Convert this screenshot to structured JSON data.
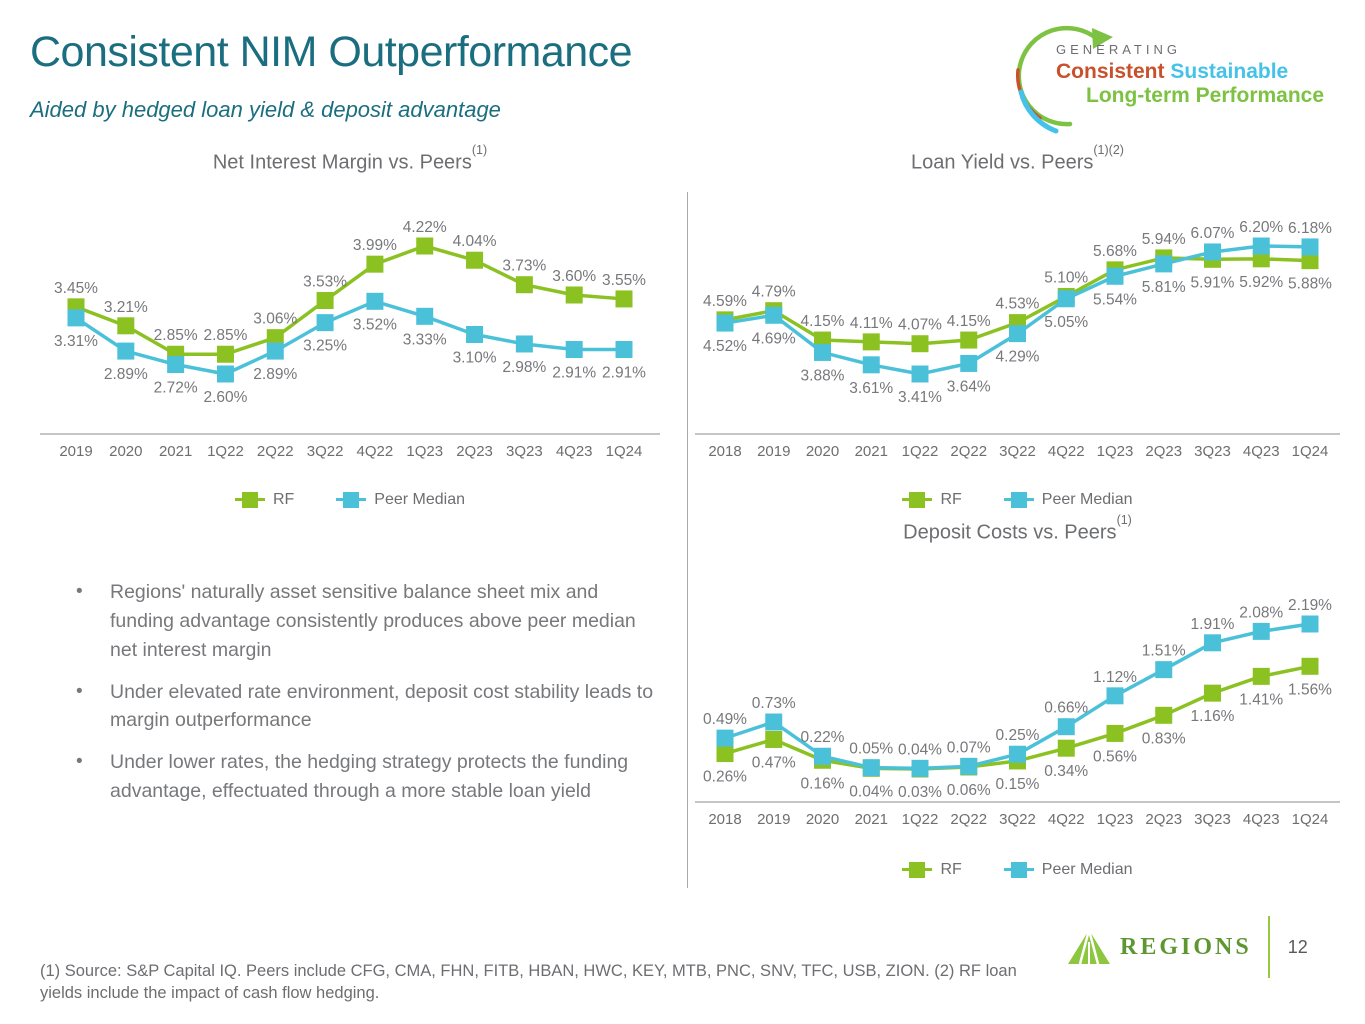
{
  "slide": {
    "title": "Consistent NIM Outperformance",
    "subtitle": "Aided by hedged loan yield & deposit advantage",
    "page_number": "12",
    "footnote": "(1) Source: S&P Capital IQ. Peers include CFG, CMA, FHN, FITB, HBAN, HWC, KEY, MTB, PNC, SNV, TFC, USB, ZION.  (2) RF loan yields include the impact of cash flow hedging."
  },
  "brand_logo": {
    "line1": "GENERATING",
    "word_consistent": "Consistent",
    "word_sustainable": "Sustainable",
    "line3": "Long-term Performance"
  },
  "regions_logo": {
    "wordmark": "REGIONS"
  },
  "legend": {
    "rf_label": "RF",
    "peer_label": "Peer Median"
  },
  "bullets": [
    "Regions' naturally asset sensitive balance sheet mix and funding advantage consistently produces above peer median net interest margin",
    "Under elevated rate environment, deposit cost stability leads to margin outperformance",
    "Under lower rates, the hedging strategy protects the funding advantage, effectuated through a more stable loan yield"
  ],
  "colors": {
    "rf_green": "#8CC122",
    "peer_blue": "#4BC1D9",
    "title_teal": "#1A6E80",
    "accent_orange": "#C8512B",
    "accent_light_blue": "#45C2EA",
    "accent_green": "#7DC242",
    "regions_green": "#5E9732",
    "axis_gray": "#BDBDBD",
    "label_gray": "#77787B"
  },
  "chart_data": [
    {
      "type": "line",
      "title": "Net Interest Margin vs. Peers",
      "title_sup": "(1)",
      "categories": [
        "2019",
        "2020",
        "2021",
        "1Q22",
        "2Q22",
        "3Q22",
        "4Q22",
        "1Q23",
        "2Q23",
        "3Q23",
        "4Q23",
        "1Q24"
      ],
      "series": [
        {
          "name": "RF",
          "color_key": "rf_green",
          "values": [
            3.45,
            3.21,
            2.85,
            2.85,
            3.06,
            3.53,
            3.99,
            4.22,
            4.04,
            3.73,
            3.6,
            3.55
          ]
        },
        {
          "name": "Peer Median",
          "color_key": "peer_blue",
          "values": [
            3.31,
            2.89,
            2.72,
            2.6,
            2.89,
            3.25,
            3.52,
            3.33,
            3.1,
            2.98,
            2.91,
            2.91
          ]
        }
      ],
      "unit": "%",
      "ylim": [
        2.5,
        4.4
      ],
      "grid": false,
      "legend_position": "bottom"
    },
    {
      "type": "line",
      "title": "Loan Yield vs. Peers",
      "title_sup": "(1)(2)",
      "categories": [
        "2018",
        "2019",
        "2020",
        "2021",
        "1Q22",
        "2Q22",
        "3Q22",
        "4Q22",
        "1Q23",
        "2Q23",
        "3Q23",
        "4Q23",
        "1Q24"
      ],
      "series": [
        {
          "name": "RF",
          "color_key": "rf_green",
          "values": [
            4.59,
            4.79,
            4.15,
            4.11,
            4.07,
            4.15,
            4.53,
            5.1,
            5.68,
            5.94,
            5.91,
            5.92,
            5.88
          ]
        },
        {
          "name": "Peer Median",
          "color_key": "peer_blue",
          "values": [
            4.52,
            4.69,
            3.88,
            3.61,
            3.41,
            3.64,
            4.29,
            5.05,
            5.54,
            5.81,
            6.07,
            6.2,
            6.18
          ]
        }
      ],
      "unit": "%",
      "ylim": [
        3.3,
        6.4
      ],
      "grid": false,
      "legend_position": "bottom"
    },
    {
      "type": "line",
      "title": "Deposit Costs vs. Peers",
      "title_sup": "(1)",
      "categories": [
        "2018",
        "2019",
        "2020",
        "2021",
        "1Q22",
        "2Q22",
        "3Q22",
        "4Q22",
        "1Q23",
        "2Q23",
        "3Q23",
        "4Q23",
        "1Q24"
      ],
      "series": [
        {
          "name": "RF",
          "color_key": "rf_green",
          "values": [
            0.26,
            0.47,
            0.16,
            0.04,
            0.03,
            0.06,
            0.15,
            0.34,
            0.56,
            0.83,
            1.16,
            1.41,
            1.56
          ]
        },
        {
          "name": "Peer Median",
          "color_key": "peer_blue",
          "values": [
            0.49,
            0.73,
            0.22,
            0.05,
            0.04,
            0.07,
            0.25,
            0.66,
            1.12,
            1.51,
            1.91,
            2.08,
            2.19
          ]
        }
      ],
      "unit": "%",
      "ylim": [
        0,
        2.3
      ],
      "grid": false,
      "legend_position": "bottom"
    }
  ]
}
